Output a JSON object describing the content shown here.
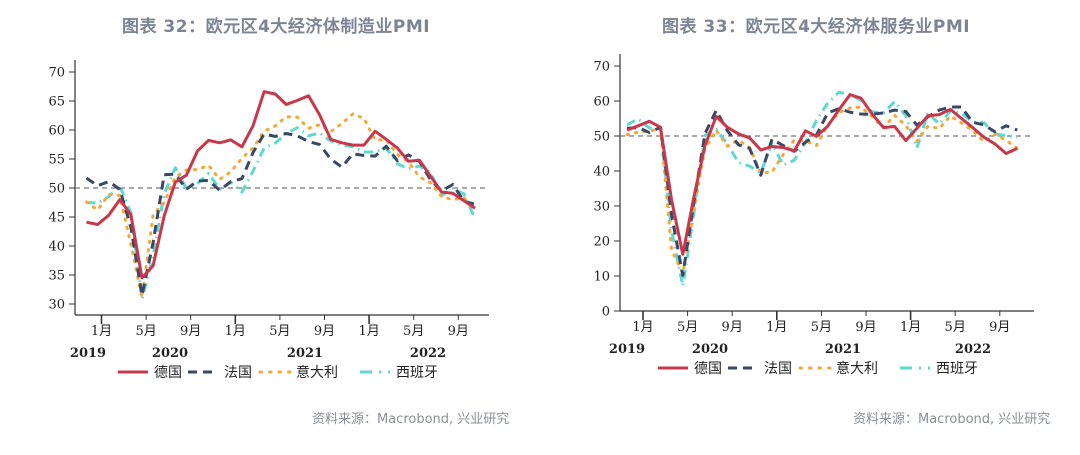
{
  "charts": [
    {
      "title": "图表 32：欧元区4大经济体制造业PMI",
      "source": "资料来源：Macrobond, 兴业研究"
    },
    {
      "title": "图表 33：欧元区4大经济体服务业PMI",
      "source": "资料来源：Macrobond, 兴业研究"
    }
  ],
  "colors": {
    "德国": "#c8384a",
    "法国": "#3a4868",
    "意大利": "#f2a93b",
    "西班牙": "#5fd8d2",
    "reference_line": "#777777",
    "axis": "#333333"
  },
  "chart_data": [
    {
      "type": "line",
      "title": "图表 32：欧元区4大经济体制造业PMI",
      "xlabel": "",
      "ylabel": "",
      "ylim": [
        30,
        70
      ],
      "yticks": [
        30,
        35,
        40,
        45,
        50,
        55,
        60,
        65,
        70
      ],
      "x_start": "2019-11",
      "x_end": "2022-10",
      "x_tick_labels": [
        "1月",
        "5月",
        "9月",
        "1月",
        "5月",
        "9月",
        "1月",
        "5月",
        "9月"
      ],
      "x_year_labels": [
        "2019",
        "2020",
        "2021",
        "2022"
      ],
      "reference_line": 50,
      "legend": [
        "德国",
        "法国",
        "意大利",
        "西班牙"
      ],
      "legend_position": "bottom",
      "series": [
        {
          "name": "德国",
          "style": "solid",
          "values": [
            44.1,
            43.7,
            45.3,
            48.0,
            45.4,
            34.5,
            36.6,
            45.2,
            51.0,
            52.2,
            56.4,
            58.2,
            57.8,
            58.3,
            57.1,
            60.7,
            66.6,
            66.2,
            64.4,
            65.1,
            65.9,
            62.6,
            58.4,
            57.8,
            57.4,
            57.4,
            59.8,
            58.4,
            56.9,
            54.6,
            54.8,
            52.0,
            49.3,
            49.1,
            47.8,
            46.5
          ]
        },
        {
          "name": "法国",
          "style": "dashed",
          "values": [
            51.7,
            50.4,
            51.1,
            49.8,
            43.2,
            31.5,
            40.6,
            52.3,
            52.4,
            49.8,
            51.2,
            51.3,
            49.6,
            51.1,
            51.6,
            56.1,
            59.3,
            58.9,
            59.4,
            59.0,
            58.0,
            57.5,
            55.0,
            53.6,
            55.9,
            55.6,
            55.5,
            57.2,
            54.7,
            55.7,
            54.6,
            51.4,
            49.5,
            50.6,
            47.7,
            47.2
          ]
        },
        {
          "name": "意大利",
          "style": "dotted",
          "values": [
            47.6,
            46.2,
            48.9,
            48.7,
            40.3,
            31.1,
            45.4,
            47.5,
            51.9,
            53.1,
            53.2,
            53.9,
            51.5,
            52.8,
            55.1,
            56.9,
            59.8,
            60.7,
            62.3,
            62.2,
            60.3,
            60.9,
            59.7,
            61.1,
            62.8,
            62.0,
            58.3,
            58.3,
            55.8,
            54.5,
            51.9,
            50.9,
            48.5,
            48.0,
            48.3,
            46.5
          ]
        },
        {
          "name": "西班牙",
          "style": "dashdot",
          "values": [
            47.5,
            47.4,
            48.5,
            50.4,
            45.7,
            30.8,
            38.3,
            49.0,
            53.5,
            49.9,
            50.8,
            52.5,
            49.8,
            51.0,
            49.3,
            52.9,
            56.9,
            57.7,
            59.4,
            60.4,
            59.0,
            59.5,
            58.1,
            57.4,
            57.1,
            56.2,
            56.2,
            56.9,
            54.2,
            53.3,
            53.8,
            52.6,
            48.7,
            49.9,
            49.0,
            44.7
          ]
        }
      ]
    },
    {
      "type": "line",
      "title": "图表 33：欧元区4大经济体服务业PMI",
      "xlabel": "",
      "ylabel": "",
      "ylim": [
        0,
        70
      ],
      "yticks": [
        0,
        10,
        20,
        30,
        40,
        50,
        60,
        70
      ],
      "x_start": "2019-11",
      "x_end": "2022-10",
      "x_tick_labels": [
        "1月",
        "5月",
        "9月",
        "1月",
        "5月",
        "9月",
        "1月",
        "5月",
        "9月"
      ],
      "x_year_labels": [
        "2019",
        "2020",
        "2021",
        "2022"
      ],
      "reference_line": 50,
      "legend": [
        "德国",
        "法国",
        "意大利",
        "西班牙"
      ],
      "legend_position": "bottom",
      "series": [
        {
          "name": "德国",
          "style": "solid",
          "values": [
            51.7,
            52.9,
            54.2,
            52.5,
            31.7,
            16.2,
            32.6,
            47.3,
            55.6,
            52.5,
            50.6,
            49.5,
            46.0,
            47.0,
            46.7,
            45.7,
            51.5,
            49.9,
            52.8,
            57.5,
            61.8,
            60.8,
            56.2,
            52.4,
            52.7,
            48.7,
            52.2,
            55.8,
            56.1,
            57.6,
            55.0,
            52.4,
            49.7,
            47.7,
            45.0,
            46.5
          ]
        },
        {
          "name": "法国",
          "style": "dashed",
          "values": [
            52.2,
            52.4,
            51.0,
            52.5,
            27.4,
            10.2,
            31.1,
            50.7,
            57.3,
            51.5,
            47.5,
            46.5,
            38.8,
            49.1,
            47.3,
            45.6,
            48.2,
            50.3,
            56.6,
            57.8,
            56.8,
            56.3,
            56.2,
            56.6,
            57.4,
            57.0,
            53.1,
            55.5,
            57.4,
            58.3,
            58.3,
            53.9,
            53.2,
            51.2,
            52.9,
            51.7
          ]
        },
        {
          "name": "意大利",
          "style": "dotted",
          "values": [
            50.4,
            51.1,
            51.4,
            52.1,
            17.4,
            10.8,
            28.9,
            46.4,
            51.6,
            47.1,
            48.8,
            46.7,
            39.4,
            39.7,
            44.7,
            48.8,
            48.6,
            47.3,
            53.1,
            56.7,
            58.0,
            58.3,
            55.5,
            52.4,
            55.9,
            53.0,
            48.5,
            52.8,
            52.1,
            55.7,
            53.7,
            51.6,
            48.4,
            50.5,
            48.8,
            46.4
          ]
        },
        {
          "name": "西班牙",
          "style": "dashdot",
          "values": [
            53.2,
            54.9,
            52.3,
            52.1,
            23.0,
            7.1,
            27.9,
            50.2,
            51.9,
            47.7,
            42.4,
            41.4,
            39.5,
            48.0,
            41.7,
            43.1,
            48.1,
            54.5,
            59.4,
            62.5,
            61.9,
            60.1,
            56.9,
            56.6,
            59.8,
            55.8,
            46.6,
            56.6,
            53.4,
            57.1,
            56.5,
            54.0,
            53.8,
            50.6,
            50.1,
            49.7
          ]
        }
      ]
    }
  ]
}
